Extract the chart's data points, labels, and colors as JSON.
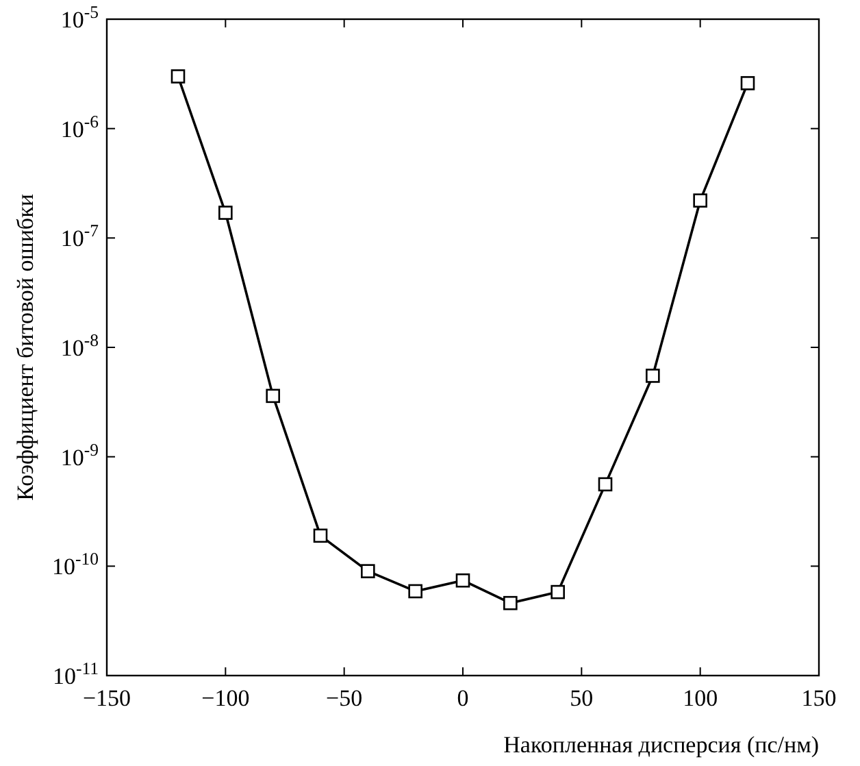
{
  "chart_data": {
    "type": "line",
    "xlabel": "Накопленная дисперсия (пс/нм)",
    "ylabel": "Коэффициент битовой ошибки",
    "x": [
      -120,
      -100,
      -80,
      -60,
      -40,
      -20,
      0,
      20,
      40,
      60,
      80,
      100,
      120
    ],
    "series": [
      {
        "color": "#000000",
        "values": [
          3e-06,
          1.7e-07,
          3.6e-09,
          1.9e-10,
          9e-11,
          5.9e-11,
          7.4e-11,
          4.6e-11,
          5.8e-11,
          5.6e-10,
          5.5e-09,
          2.2e-07,
          2.6e-06
        ]
      }
    ],
    "xlim": [
      -150,
      150
    ],
    "xticks": [
      -150,
      -100,
      -50,
      0,
      50,
      100,
      150
    ],
    "ylim": [
      1e-11,
      1e-05
    ],
    "yticks": [
      {
        "value": 1e-11,
        "label": "10$^{-11}$"
      },
      {
        "value": 1e-10,
        "label": "10$^{-10}$"
      },
      {
        "value": 1e-09,
        "label": "10$^{-9}$"
      },
      {
        "value": 1e-08,
        "label": "10$^{-8}$"
      },
      {
        "value": 1e-07,
        "label": "10$^{-7}$"
      },
      {
        "value": 1e-06,
        "label": "10$^{-6}$"
      },
      {
        "value": 1e-05,
        "label": "10$^{-5}$"
      }
    ],
    "log": "y",
    "marker": "square",
    "line_style": "solid",
    "grid": false
  }
}
